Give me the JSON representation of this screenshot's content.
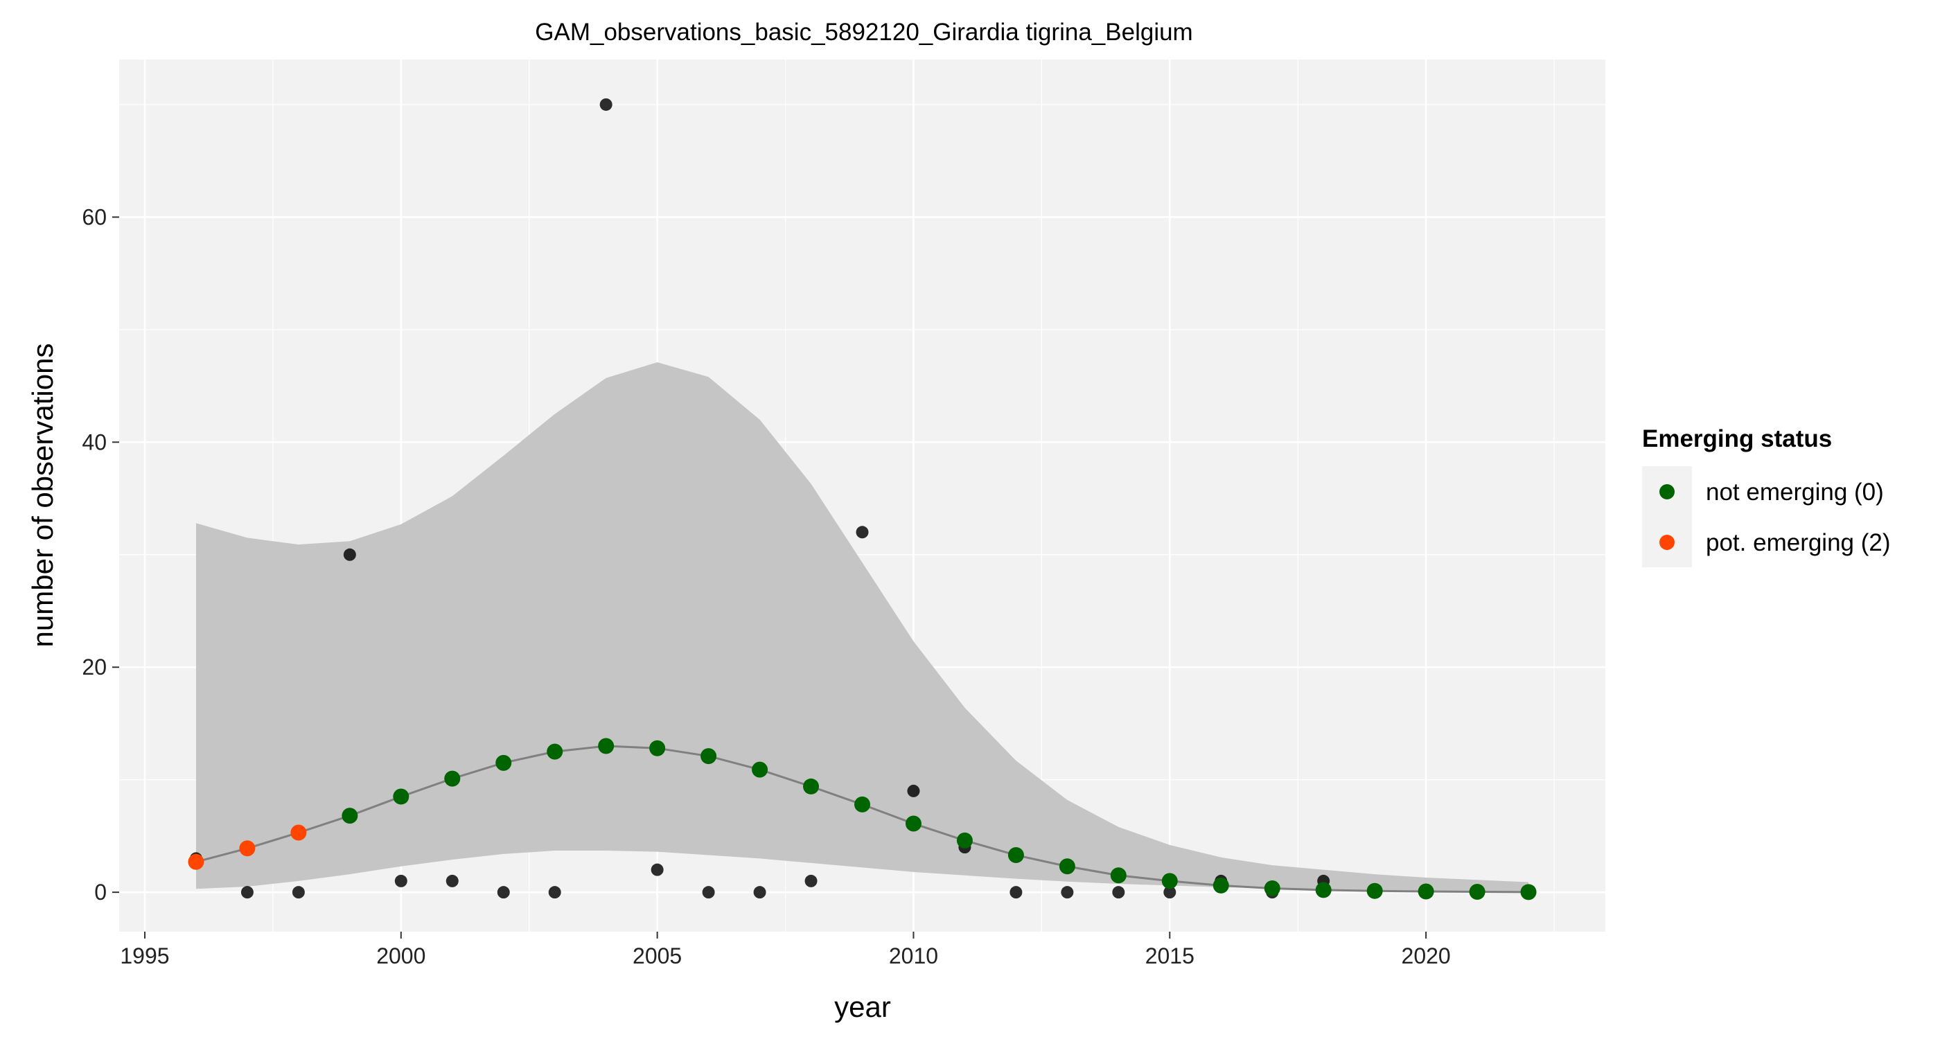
{
  "chart_data": {
    "type": "scatter",
    "title": "GAM_observations_basic_5892120_Girardia tigrina_Belgium",
    "xlabel": "year",
    "ylabel": "number of observations",
    "xlim": [
      1994.5,
      2023.5
    ],
    "ylim": [
      -3.5,
      74
    ],
    "x_ticks": [
      1995,
      2000,
      2005,
      2010,
      2015,
      2020
    ],
    "y_ticks": [
      0,
      20,
      40,
      60
    ],
    "grid": true,
    "legend": {
      "title": "Emerging status",
      "position": "right",
      "entries": [
        {
          "label": "not emerging (0)",
          "color": "#006400"
        },
        {
          "label": "pot. emerging (2)",
          "color": "#ff4500"
        }
      ]
    },
    "observations": {
      "color": "#000000",
      "x": [
        1996,
        1997,
        1998,
        1999,
        2000,
        2001,
        2002,
        2003,
        2004,
        2005,
        2006,
        2007,
        2008,
        2009,
        2010,
        2011,
        2012,
        2013,
        2014,
        2015,
        2016,
        2017,
        2018
      ],
      "y": [
        3,
        0,
        0,
        30,
        1,
        1,
        0,
        0,
        70,
        2,
        0,
        0,
        1,
        32,
        9,
        4,
        0,
        0,
        0,
        0,
        1,
        0,
        1
      ]
    },
    "fit": {
      "line_color": "#808080",
      "ci_color": "#c5c5c5",
      "x": [
        1996,
        1997,
        1998,
        1999,
        2000,
        2001,
        2002,
        2003,
        2004,
        2005,
        2006,
        2007,
        2008,
        2009,
        2010,
        2011,
        2012,
        2013,
        2014,
        2015,
        2016,
        2017,
        2018,
        2019,
        2020,
        2021,
        2022
      ],
      "y": [
        2.7,
        3.9,
        5.3,
        6.8,
        8.5,
        10.1,
        11.5,
        12.5,
        13.0,
        12.8,
        12.1,
        10.9,
        9.4,
        7.8,
        6.1,
        4.6,
        3.3,
        2.3,
        1.5,
        1.0,
        0.6,
        0.35,
        0.2,
        0.12,
        0.07,
        0.04,
        0.02
      ],
      "ci_lower": [
        0.3,
        0.5,
        1.0,
        1.6,
        2.3,
        2.9,
        3.4,
        3.7,
        3.7,
        3.6,
        3.3,
        3.0,
        2.6,
        2.2,
        1.8,
        1.5,
        1.2,
        0.95,
        0.75,
        0.6,
        0.45,
        0.35,
        0.27,
        0.2,
        0.15,
        0.1,
        0.07
      ],
      "ci_upper": [
        32.8,
        31.5,
        30.9,
        31.2,
        32.7,
        35.2,
        38.8,
        42.5,
        45.7,
        47.1,
        45.8,
        42.0,
        36.3,
        29.3,
        22.3,
        16.4,
        11.7,
        8.2,
        5.8,
        4.2,
        3.1,
        2.4,
        2.0,
        1.6,
        1.3,
        1.1,
        0.9
      ],
      "status": [
        "2",
        "2",
        "2",
        "0",
        "0",
        "0",
        "0",
        "0",
        "0",
        "0",
        "0",
        "0",
        "0",
        "0",
        "0",
        "0",
        "0",
        "0",
        "0",
        "0",
        "0",
        "0",
        "0",
        "0",
        "0",
        "0",
        "0"
      ]
    }
  }
}
